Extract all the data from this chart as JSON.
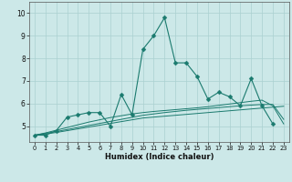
{
  "xlabel": "Humidex (Indice chaleur)",
  "bg_color": "#cce8e8",
  "line_color": "#1a7a6e",
  "x_values": [
    0,
    1,
    2,
    3,
    4,
    5,
    6,
    7,
    8,
    9,
    10,
    11,
    12,
    13,
    14,
    15,
    16,
    17,
    18,
    19,
    20,
    21,
    22,
    23
  ],
  "series1": [
    4.6,
    4.6,
    4.8,
    5.4,
    5.5,
    5.6,
    5.6,
    5.0,
    6.4,
    5.5,
    8.4,
    9.0,
    9.8,
    7.8,
    7.8,
    7.2,
    6.2,
    6.5,
    6.3,
    5.9,
    7.1,
    5.9,
    5.1,
    null
  ],
  "series2": [
    4.6,
    4.65,
    4.72,
    4.8,
    4.88,
    4.96,
    5.04,
    5.12,
    5.2,
    5.28,
    5.36,
    5.4,
    5.44,
    5.48,
    5.52,
    5.56,
    5.6,
    5.64,
    5.68,
    5.72,
    5.76,
    5.8,
    5.84,
    5.88
  ],
  "series3": [
    4.6,
    4.68,
    4.76,
    4.85,
    4.94,
    5.03,
    5.12,
    5.21,
    5.3,
    5.39,
    5.48,
    5.54,
    5.6,
    5.65,
    5.7,
    5.74,
    5.78,
    5.82,
    5.86,
    5.9,
    5.93,
    5.96,
    5.96,
    5.3
  ],
  "series4": [
    4.6,
    4.7,
    4.82,
    4.94,
    5.06,
    5.18,
    5.28,
    5.38,
    5.46,
    5.54,
    5.6,
    5.65,
    5.69,
    5.73,
    5.77,
    5.81,
    5.86,
    5.92,
    5.98,
    6.04,
    6.1,
    6.15,
    5.9,
    5.1
  ],
  "ylim": [
    4.3,
    10.5
  ],
  "yticks": [
    5,
    6,
    7,
    8,
    9,
    10
  ],
  "xticks": [
    0,
    1,
    2,
    3,
    4,
    5,
    6,
    7,
    8,
    9,
    10,
    11,
    12,
    13,
    14,
    15,
    16,
    17,
    18,
    19,
    20,
    21,
    22,
    23
  ],
  "grid_color": "#aad0d0",
  "markersize": 2.5
}
